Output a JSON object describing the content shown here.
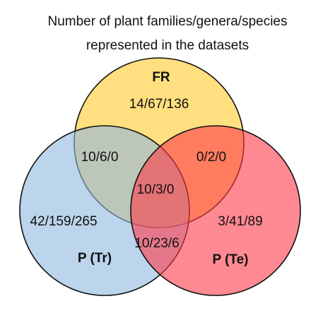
{
  "title": [
    "Number of plant families/genera/species",
    "represented in the datasets"
  ],
  "sets": [
    {
      "label": "FR",
      "color": "#ffd34d"
    },
    {
      "label": "P (Tr)",
      "color": "#8fb8e0"
    },
    {
      "label": "P (Te)",
      "color": "#ff3b4a"
    }
  ],
  "regions": [
    {
      "sets": "FR",
      "label": "14/67/136"
    },
    {
      "sets": "FR, P (Tr)",
      "label": "10/6/0"
    },
    {
      "sets": "FR, P (Te)",
      "label": "0/2/0"
    },
    {
      "sets": "FR, P (Tr), P (Te)",
      "label": "10/3/0"
    },
    {
      "sets": "P (Tr)",
      "label": "42/159/265"
    },
    {
      "sets": "P (Te)",
      "label": "3/41/89"
    },
    {
      "sets": "P (Tr), P (Te)",
      "label": "10/23/6"
    }
  ]
}
